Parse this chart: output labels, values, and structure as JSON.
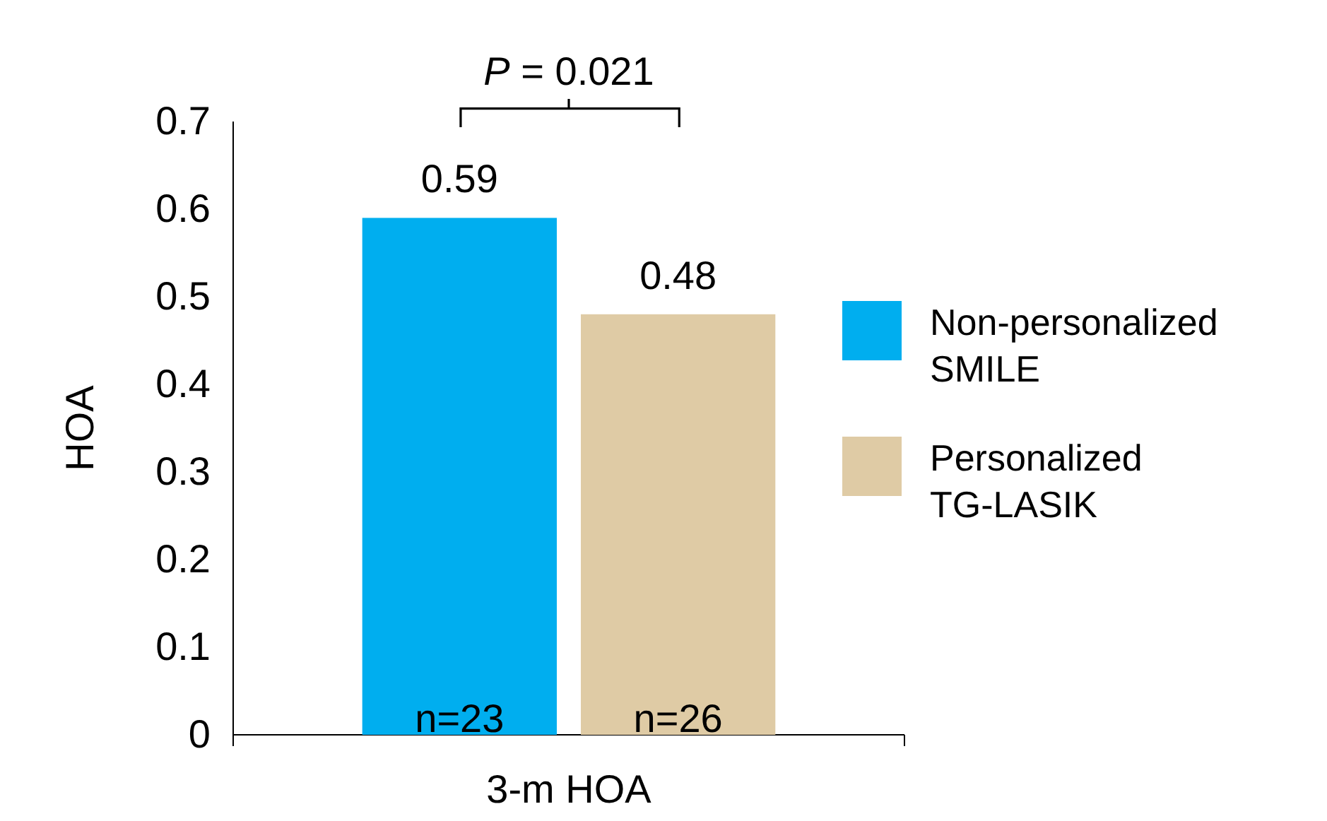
{
  "chart_data": {
    "type": "bar",
    "categories": [
      "3-m HOA"
    ],
    "series": [
      {
        "name": "Non-personalized SMILE",
        "color": "#00aeef",
        "values": [
          0.59
        ]
      },
      {
        "name": "Personalized TG-LASIK",
        "color": "#dfcba5",
        "values": [
          0.48
        ]
      }
    ],
    "ylabel": "HOA",
    "ylim": [
      0,
      0.7
    ],
    "yticks": [
      0,
      0.1,
      0.2,
      0.3,
      0.4,
      0.5,
      0.6,
      0.7
    ],
    "data_labels": true,
    "legend": "right",
    "grid": false,
    "annotations": [
      "P = 0.021",
      "n=23",
      "n=26"
    ]
  }
}
